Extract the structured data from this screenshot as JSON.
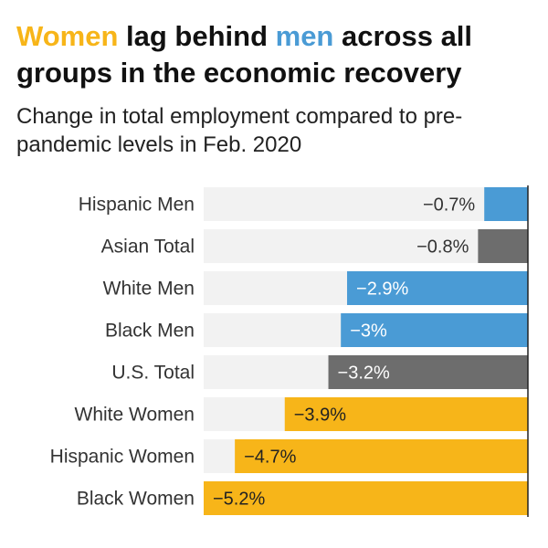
{
  "headline": {
    "part1": "Women",
    "part2": " lag behind ",
    "part3": "men",
    "part4": " across all groups in the economic recovery"
  },
  "subtitle": "Change in total employment compared to pre-pandemic levels in Feb. 2020",
  "colors": {
    "women": "#f7b519",
    "men": "#4a9bd5",
    "total": "#6d6d6d",
    "track": "#f2f2f2",
    "headline_text": "#111111"
  },
  "chart_data": {
    "type": "bar",
    "orientation": "horizontal",
    "title": "Women lag behind men across all groups in the economic recovery",
    "subtitle": "Change in total employment compared to pre-pandemic levels in Feb. 2020",
    "xlim": [
      -5.2,
      0
    ],
    "grid": false,
    "categories": [
      "Hispanic Men",
      "Asian Total",
      "White Men",
      "Black Men",
      "U.S. Total",
      "White Women",
      "Hispanic Women",
      "Black Women"
    ],
    "values": [
      -0.7,
      -0.8,
      -2.9,
      -3.0,
      -3.2,
      -3.9,
      -4.7,
      -5.2
    ],
    "value_labels": [
      "−0.7%",
      "−0.8%",
      "−2.9%",
      "−3%",
      "−3.2%",
      "−3.9%",
      "−4.7%",
      "−5.2%"
    ],
    "groups": [
      "men",
      "total",
      "men",
      "men",
      "total",
      "women",
      "women",
      "women"
    ]
  }
}
